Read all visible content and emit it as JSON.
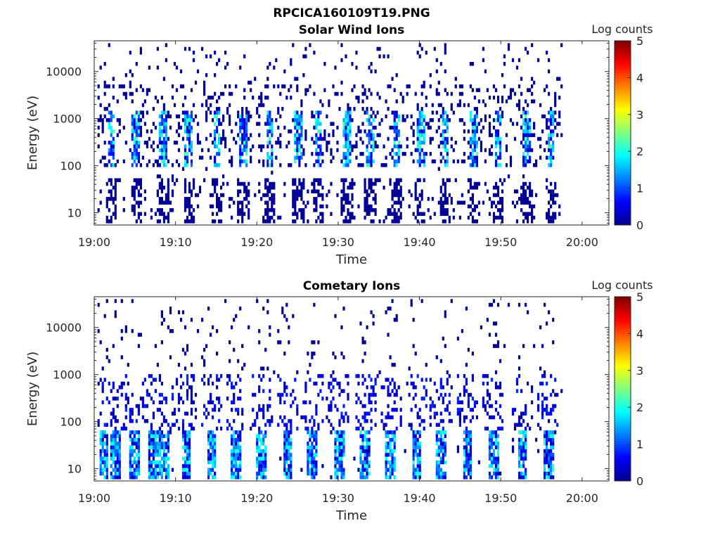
{
  "figure_title": "RPCICA160109T19.PNG",
  "chart_data": [
    {
      "type": "heatmap",
      "title": "Solar Wind Ions",
      "xlabel": "Time",
      "ylabel": "Energy (eV)",
      "x_tick_labels": [
        "19:00",
        "19:10",
        "19:20",
        "19:30",
        "19:40",
        "19:50",
        "20:00"
      ],
      "x_ticks_min": [
        0,
        10,
        20,
        30,
        40,
        50,
        60
      ],
      "xlim_min": [
        0,
        63.3
      ],
      "y_scale": "log",
      "y_tick_labels": [
        "10",
        "100",
        "1000",
        "10000"
      ],
      "y_ticks": [
        10,
        100,
        1000,
        10000
      ],
      "ylim": [
        5.5,
        45000
      ],
      "data_extent_min": [
        0,
        57.4
      ],
      "colorbar": {
        "label": "Log counts",
        "range": [
          0,
          5
        ],
        "ticks": [
          "0",
          "1",
          "2",
          "3",
          "4",
          "5"
        ],
        "colormap": "jet"
      },
      "features": {
        "background_scatter_log_counts": 0.1,
        "burst_times_min": [
          2.0,
          5.0,
          8.3,
          11.5,
          15.0,
          18.2,
          21.5,
          25.0,
          27.5,
          31.0,
          33.8,
          37.0,
          40.0,
          43.0,
          46.5,
          49.5,
          53.0,
          56.0
        ],
        "burst_energy_range_eV": [
          100,
          1500
        ],
        "burst_peak_log_counts": 2.3,
        "low_energy_columns_range_eV": [
          6,
          50
        ]
      }
    },
    {
      "type": "heatmap",
      "title": "Cometary Ions",
      "xlabel": "Time",
      "ylabel": "Energy (eV)",
      "x_tick_labels": [
        "19:00",
        "19:10",
        "19:20",
        "19:30",
        "19:40",
        "19:50",
        "20:00"
      ],
      "x_ticks_min": [
        0,
        10,
        20,
        30,
        40,
        50,
        60
      ],
      "xlim_min": [
        0,
        63.3
      ],
      "y_scale": "log",
      "y_tick_labels": [
        "10",
        "100",
        "1000",
        "10000"
      ],
      "y_ticks": [
        10,
        100,
        1000,
        10000
      ],
      "ylim": [
        5.5,
        45000
      ],
      "data_extent_min": [
        0,
        57.4
      ],
      "colorbar": {
        "label": "Log counts",
        "range": [
          0,
          5
        ],
        "ticks": [
          "0",
          "1",
          "2",
          "3",
          "4",
          "5"
        ],
        "colormap": "jet"
      },
      "features": {
        "background_scatter_log_counts": 0.1,
        "burst_times_min": [
          1.0,
          2.5,
          4.8,
          7.2,
          8.5,
          11.2,
          14.3,
          17.3,
          20.5,
          23.7,
          26.7,
          30.0,
          33.2,
          36.3,
          39.5,
          42.5,
          45.8,
          49.0,
          52.5,
          55.7
        ],
        "burst_energy_range_eV": [
          6,
          60
        ],
        "burst_peak_log_counts": 2.1,
        "cometary_tail_energy_range_eV": [
          60,
          1000
        ]
      }
    }
  ]
}
